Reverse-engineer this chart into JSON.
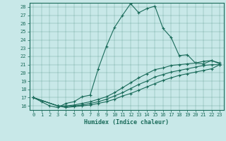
{
  "xlabel": "Humidex (Indice chaleur)",
  "background_color": "#c8e8e8",
  "line_color": "#1a6b5a",
  "xlim": [
    -0.5,
    23.5
  ],
  "ylim": [
    15.5,
    28.5
  ],
  "xticks": [
    0,
    1,
    2,
    3,
    4,
    5,
    6,
    7,
    8,
    9,
    10,
    11,
    12,
    13,
    14,
    15,
    16,
    17,
    18,
    19,
    20,
    21,
    22,
    23
  ],
  "yticks": [
    16,
    17,
    18,
    19,
    20,
    21,
    22,
    23,
    24,
    25,
    26,
    27,
    28
  ],
  "series": [
    {
      "x": [
        0,
        1,
        2,
        3,
        4,
        5,
        6,
        7,
        8,
        9,
        10,
        11,
        12,
        13,
        14,
        15,
        16,
        17,
        18,
        19,
        20,
        21,
        22,
        23
      ],
      "y": [
        17.0,
        16.5,
        16.0,
        15.8,
        16.3,
        16.5,
        17.1,
        17.3,
        20.5,
        23.2,
        25.5,
        27.0,
        28.4,
        27.3,
        27.8,
        28.1,
        25.4,
        24.3,
        22.1,
        22.2,
        21.2,
        21.1,
        21.5,
        21.1
      ]
    },
    {
      "x": [
        0,
        3,
        4,
        5,
        6,
        7,
        8,
        9,
        10,
        11,
        12,
        13,
        14,
        15,
        16,
        17,
        18,
        19,
        20,
        21,
        22,
        23
      ],
      "y": [
        17.0,
        16.0,
        16.0,
        16.1,
        16.3,
        16.5,
        16.8,
        17.1,
        17.6,
        18.2,
        18.8,
        19.4,
        19.9,
        20.4,
        20.6,
        20.9,
        21.0,
        21.1,
        21.2,
        21.4,
        21.5,
        21.2
      ]
    },
    {
      "x": [
        0,
        3,
        4,
        5,
        6,
        7,
        8,
        9,
        10,
        11,
        12,
        13,
        14,
        15,
        16,
        17,
        18,
        19,
        20,
        21,
        22,
        23
      ],
      "y": [
        17.0,
        16.0,
        15.9,
        16.0,
        16.1,
        16.3,
        16.5,
        16.8,
        17.2,
        17.6,
        18.1,
        18.6,
        19.0,
        19.5,
        19.8,
        20.1,
        20.3,
        20.5,
        20.7,
        20.9,
        21.0,
        21.0
      ]
    },
    {
      "x": [
        0,
        3,
        4,
        5,
        6,
        7,
        8,
        9,
        10,
        11,
        12,
        13,
        14,
        15,
        16,
        17,
        18,
        19,
        20,
        21,
        22,
        23
      ],
      "y": [
        17.0,
        16.0,
        15.8,
        15.9,
        16.0,
        16.1,
        16.3,
        16.5,
        16.8,
        17.2,
        17.5,
        17.9,
        18.3,
        18.7,
        19.1,
        19.4,
        19.7,
        19.9,
        20.1,
        20.3,
        20.5,
        21.0
      ]
    }
  ]
}
